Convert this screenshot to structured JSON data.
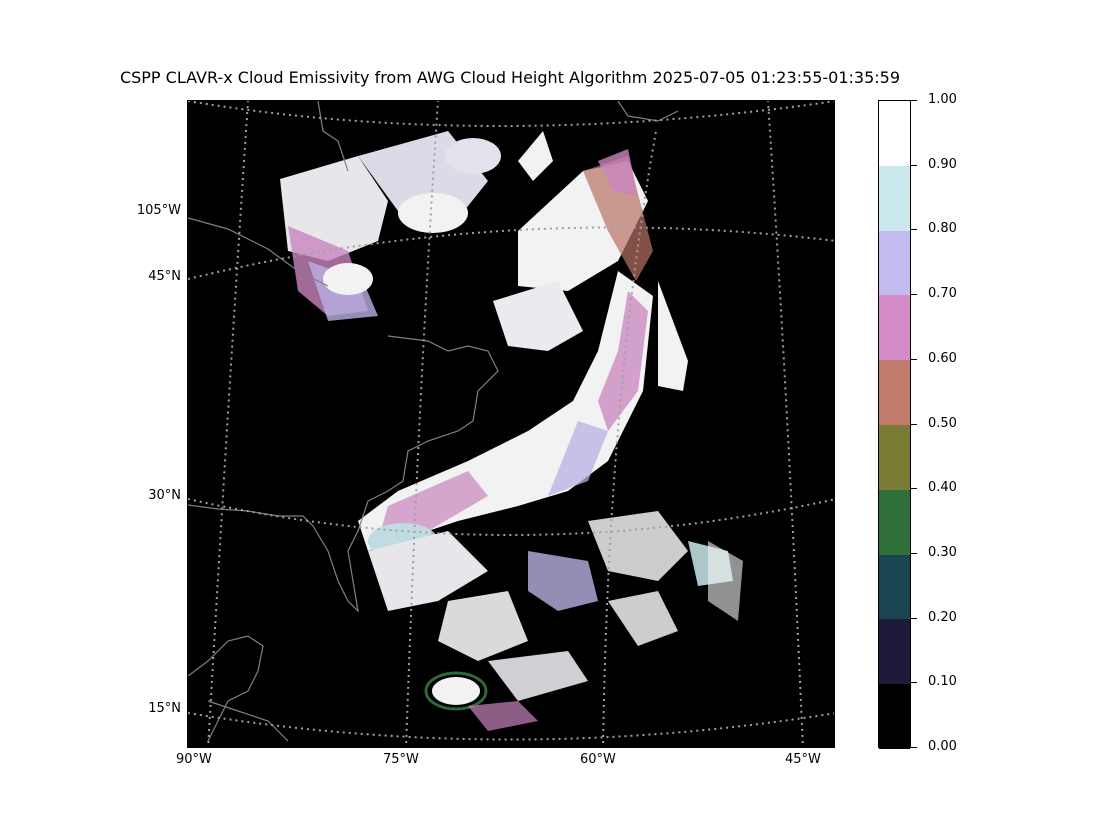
{
  "title": "CSPP CLAVR-x Cloud Emissivity from AWG Cloud Height Algorithm 2025-07-05 01:23:55-01:35:59",
  "map": {
    "background_color": "#000000",
    "coastline_color": "#808080",
    "gridline_color": "#a0a0a0",
    "lat_labels": [
      "45°N",
      "30°N",
      "15°N"
    ],
    "lon_labels_left": [
      "105°W"
    ],
    "lon_labels_bottom": [
      "90°W",
      "75°W",
      "60°W",
      "45°W"
    ]
  },
  "colorbar": {
    "ticks": [
      "1.00",
      "0.90",
      "0.80",
      "0.70",
      "0.60",
      "0.50",
      "0.40",
      "0.30",
      "0.20",
      "0.10",
      "0.00"
    ],
    "segments": [
      {
        "range": "0.90-1.00",
        "color": "#ffffff"
      },
      {
        "range": "0.80-0.90",
        "color": "#cbe8ec"
      },
      {
        "range": "0.70-0.80",
        "color": "#c3baf0"
      },
      {
        "range": "0.60-0.70",
        "color": "#d48cc9"
      },
      {
        "range": "0.50-0.60",
        "color": "#c27a6b"
      },
      {
        "range": "0.40-0.50",
        "color": "#7a7c35"
      },
      {
        "range": "0.30-0.40",
        "color": "#2f6f3a"
      },
      {
        "range": "0.20-0.30",
        "color": "#1a4550"
      },
      {
        "range": "0.10-0.20",
        "color": "#1e1a3a"
      },
      {
        "range": "0.00-0.10",
        "color": "#000000"
      }
    ]
  }
}
